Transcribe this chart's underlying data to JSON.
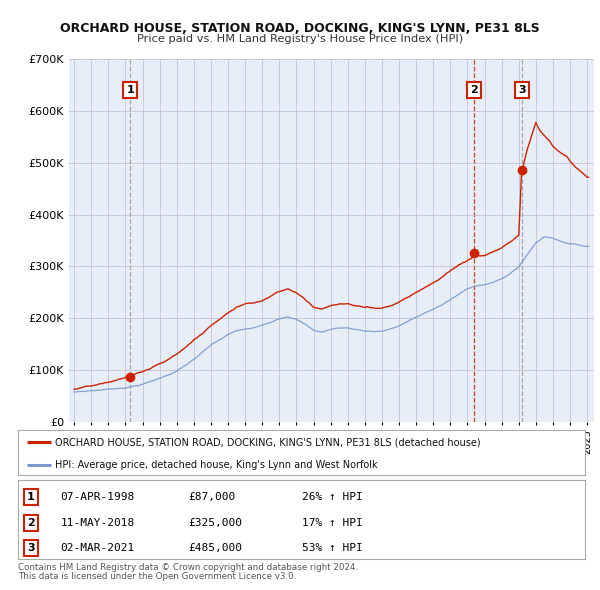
{
  "title": "ORCHARD HOUSE, STATION ROAD, DOCKING, KING'S LYNN, PE31 8LS",
  "subtitle": "Price paid vs. HM Land Registry's House Price Index (HPI)",
  "legend_line1": "ORCHARD HOUSE, STATION ROAD, DOCKING, KING'S LYNN, PE31 8LS (detached house)",
  "legend_line2": "HPI: Average price, detached house, King's Lynn and West Norfolk",
  "footnote1": "Contains HM Land Registry data © Crown copyright and database right 2024.",
  "footnote2": "This data is licensed under the Open Government Licence v3.0.",
  "transactions": [
    {
      "num": 1,
      "date": "07-APR-1998",
      "price": "£87,000",
      "hpi": "26% ↑ HPI",
      "year": 1998.28
    },
    {
      "num": 2,
      "date": "11-MAY-2018",
      "price": "£325,000",
      "hpi": "17% ↑ HPI",
      "year": 2018.37
    },
    {
      "num": 3,
      "date": "02-MAR-2021",
      "price": "£485,000",
      "hpi": "53% ↑ HPI",
      "year": 2021.17
    }
  ],
  "transaction_values": [
    87000,
    325000,
    485000
  ],
  "red_line_color": "#cc2200",
  "blue_line_color": "#7799cc",
  "vline_color_grey": "#999999",
  "vline_color_red": "#cc2200",
  "grid_color": "#bbbbcc",
  "chart_bg": "#e8eef8",
  "fig_bg": "#ffffff",
  "ylim": [
    0,
    700000
  ],
  "xlim_start": 1994.7,
  "xlim_end": 2025.4,
  "ytick_labels": [
    "£0",
    "£100K",
    "£200K",
    "£300K",
    "£400K",
    "£500K",
    "£600K",
    "£700K"
  ],
  "ytick_values": [
    0,
    100000,
    200000,
    300000,
    400000,
    500000,
    600000,
    700000
  ],
  "xtick_years": [
    1995,
    1996,
    1997,
    1998,
    1999,
    2000,
    2001,
    2002,
    2003,
    2004,
    2005,
    2006,
    2007,
    2008,
    2009,
    2010,
    2011,
    2012,
    2013,
    2014,
    2015,
    2016,
    2017,
    2018,
    2019,
    2020,
    2021,
    2022,
    2023,
    2024,
    2025
  ],
  "hpi_anchors": [
    [
      1995.0,
      57000
    ],
    [
      1995.5,
      58500
    ],
    [
      1996.0,
      60000
    ],
    [
      1996.5,
      61500
    ],
    [
      1997.0,
      63000
    ],
    [
      1997.5,
      65000
    ],
    [
      1998.0,
      67000
    ],
    [
      1998.5,
      70000
    ],
    [
      1999.0,
      74000
    ],
    [
      1999.5,
      79000
    ],
    [
      2000.0,
      85000
    ],
    [
      2000.5,
      92000
    ],
    [
      2001.0,
      100000
    ],
    [
      2001.5,
      110000
    ],
    [
      2002.0,
      122000
    ],
    [
      2002.5,
      135000
    ],
    [
      2003.0,
      148000
    ],
    [
      2003.5,
      158000
    ],
    [
      2004.0,
      168000
    ],
    [
      2004.5,
      175000
    ],
    [
      2005.0,
      178000
    ],
    [
      2005.5,
      180000
    ],
    [
      2006.0,
      185000
    ],
    [
      2006.5,
      192000
    ],
    [
      2007.0,
      200000
    ],
    [
      2007.5,
      205000
    ],
    [
      2008.0,
      200000
    ],
    [
      2008.5,
      190000
    ],
    [
      2009.0,
      178000
    ],
    [
      2009.5,
      175000
    ],
    [
      2010.0,
      180000
    ],
    [
      2010.5,
      183000
    ],
    [
      2011.0,
      183000
    ],
    [
      2011.5,
      180000
    ],
    [
      2012.0,
      178000
    ],
    [
      2012.5,
      177000
    ],
    [
      2013.0,
      178000
    ],
    [
      2013.5,
      182000
    ],
    [
      2014.0,
      188000
    ],
    [
      2014.5,
      196000
    ],
    [
      2015.0,
      204000
    ],
    [
      2015.5,
      212000
    ],
    [
      2016.0,
      220000
    ],
    [
      2016.5,
      228000
    ],
    [
      2017.0,
      238000
    ],
    [
      2017.5,
      248000
    ],
    [
      2018.0,
      258000
    ],
    [
      2018.5,
      265000
    ],
    [
      2019.0,
      268000
    ],
    [
      2019.5,
      272000
    ],
    [
      2020.0,
      278000
    ],
    [
      2020.5,
      288000
    ],
    [
      2021.0,
      302000
    ],
    [
      2021.5,
      325000
    ],
    [
      2022.0,
      348000
    ],
    [
      2022.5,
      360000
    ],
    [
      2023.0,
      358000
    ],
    [
      2023.5,
      352000
    ],
    [
      2024.0,
      348000
    ],
    [
      2024.5,
      345000
    ],
    [
      2025.0,
      343000
    ]
  ],
  "red_anchors": [
    [
      1995.0,
      63000
    ],
    [
      1995.5,
      65000
    ],
    [
      1996.0,
      68000
    ],
    [
      1996.5,
      70000
    ],
    [
      1997.0,
      73000
    ],
    [
      1997.5,
      78000
    ],
    [
      1998.0,
      82000
    ],
    [
      1998.28,
      87000
    ],
    [
      1998.5,
      89000
    ],
    [
      1999.0,
      94000
    ],
    [
      1999.5,
      100000
    ],
    [
      2000.0,
      108000
    ],
    [
      2000.5,
      117000
    ],
    [
      2001.0,
      127000
    ],
    [
      2001.5,
      140000
    ],
    [
      2002.0,
      155000
    ],
    [
      2002.5,
      168000
    ],
    [
      2003.0,
      182000
    ],
    [
      2003.5,
      196000
    ],
    [
      2004.0,
      210000
    ],
    [
      2004.5,
      222000
    ],
    [
      2005.0,
      228000
    ],
    [
      2005.5,
      230000
    ],
    [
      2006.0,
      235000
    ],
    [
      2006.5,
      245000
    ],
    [
      2007.0,
      255000
    ],
    [
      2007.5,
      260000
    ],
    [
      2008.0,
      252000
    ],
    [
      2008.5,
      240000
    ],
    [
      2009.0,
      225000
    ],
    [
      2009.5,
      222000
    ],
    [
      2010.0,
      228000
    ],
    [
      2010.5,
      232000
    ],
    [
      2011.0,
      232000
    ],
    [
      2011.5,
      228000
    ],
    [
      2012.0,
      225000
    ],
    [
      2012.5,
      224000
    ],
    [
      2013.0,
      225000
    ],
    [
      2013.5,
      230000
    ],
    [
      2014.0,
      238000
    ],
    [
      2014.5,
      248000
    ],
    [
      2015.0,
      258000
    ],
    [
      2015.5,
      268000
    ],
    [
      2016.0,
      278000
    ],
    [
      2016.5,
      288000
    ],
    [
      2017.0,
      300000
    ],
    [
      2017.5,
      312000
    ],
    [
      2018.0,
      320000
    ],
    [
      2018.37,
      325000
    ],
    [
      2018.5,
      330000
    ],
    [
      2019.0,
      328000
    ],
    [
      2019.5,
      335000
    ],
    [
      2020.0,
      342000
    ],
    [
      2020.5,
      352000
    ],
    [
      2021.0,
      365000
    ],
    [
      2021.17,
      485000
    ],
    [
      2021.5,
      530000
    ],
    [
      2021.8,
      560000
    ],
    [
      2022.0,
      580000
    ],
    [
      2022.2,
      565000
    ],
    [
      2022.5,
      555000
    ],
    [
      2022.8,
      545000
    ],
    [
      2023.0,
      535000
    ],
    [
      2023.3,
      525000
    ],
    [
      2023.5,
      520000
    ],
    [
      2023.8,
      515000
    ],
    [
      2024.0,
      505000
    ],
    [
      2024.3,
      495000
    ],
    [
      2024.5,
      490000
    ],
    [
      2024.8,
      480000
    ],
    [
      2025.0,
      475000
    ]
  ]
}
